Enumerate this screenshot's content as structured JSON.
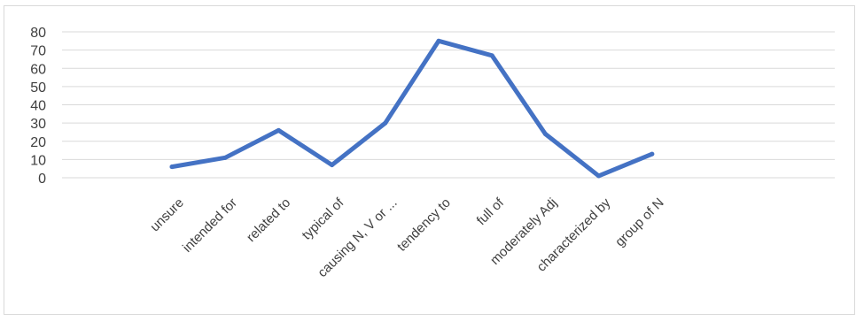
{
  "chart_data": {
    "type": "line",
    "title": "",
    "xlabel": "",
    "ylabel": "",
    "categories": [
      "unsure",
      "intended for",
      "related to",
      "typical of",
      "causing N, V or ...",
      "tendency to",
      "full of",
      "moderately Adj",
      "characterized by",
      "group of N"
    ],
    "series": [
      {
        "values": [
          6,
          11,
          26,
          7,
          30,
          75,
          67,
          24,
          1,
          13
        ],
        "color": "#4472c4"
      }
    ],
    "ylim": [
      0,
      80
    ],
    "yticks": [
      0,
      10,
      20,
      30,
      40,
      50,
      60,
      70,
      80
    ],
    "grid": true,
    "legend": "none"
  }
}
